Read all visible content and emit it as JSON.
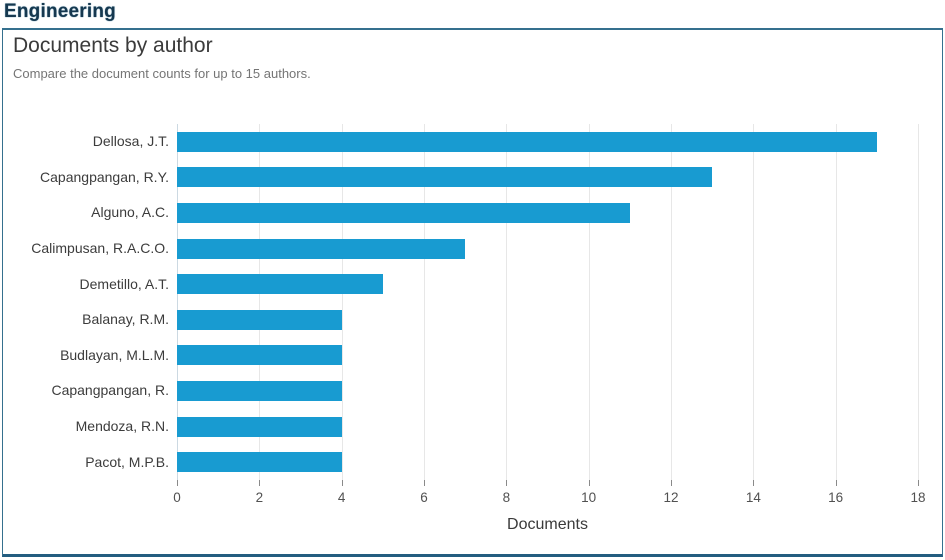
{
  "page": {
    "heading": "Engineering"
  },
  "card": {
    "title": "Documents by author",
    "subtitle": "Compare the document counts for up to 15 authors."
  },
  "chart_data": {
    "type": "bar",
    "orientation": "horizontal",
    "title": "Documents by author",
    "categories": [
      "Dellosa, J.T.",
      "Capangpangan, R.Y.",
      "Alguno, A.C.",
      "Calimpusan, R.A.C.O.",
      "Demetillo, A.T.",
      "Balanay, R.M.",
      "Budlayan, M.L.M.",
      "Capangpangan, R.",
      "Mendoza, R.N.",
      "Pacot, M.P.B."
    ],
    "values": [
      17,
      13,
      11,
      7,
      5,
      4,
      4,
      4,
      4,
      4
    ],
    "xlabel": "Documents",
    "ylabel": "",
    "xlim": [
      0,
      18
    ],
    "xticks": [
      0,
      2,
      4,
      6,
      8,
      10,
      12,
      14,
      16,
      18
    ],
    "grid": "vertical-only",
    "legend": "none",
    "bar_color": "#189bd1"
  },
  "colors": {
    "accent": "#189bd1",
    "heading_text": "#16384f",
    "panel_border": "#35708e",
    "panel_border_bottom": "#235d80",
    "title_text": "#3b3b3b",
    "subtitle_text": "#757575",
    "tick_text": "#515151",
    "gridline": "#e7e7e7",
    "zero_line": "#ccd9e2"
  }
}
